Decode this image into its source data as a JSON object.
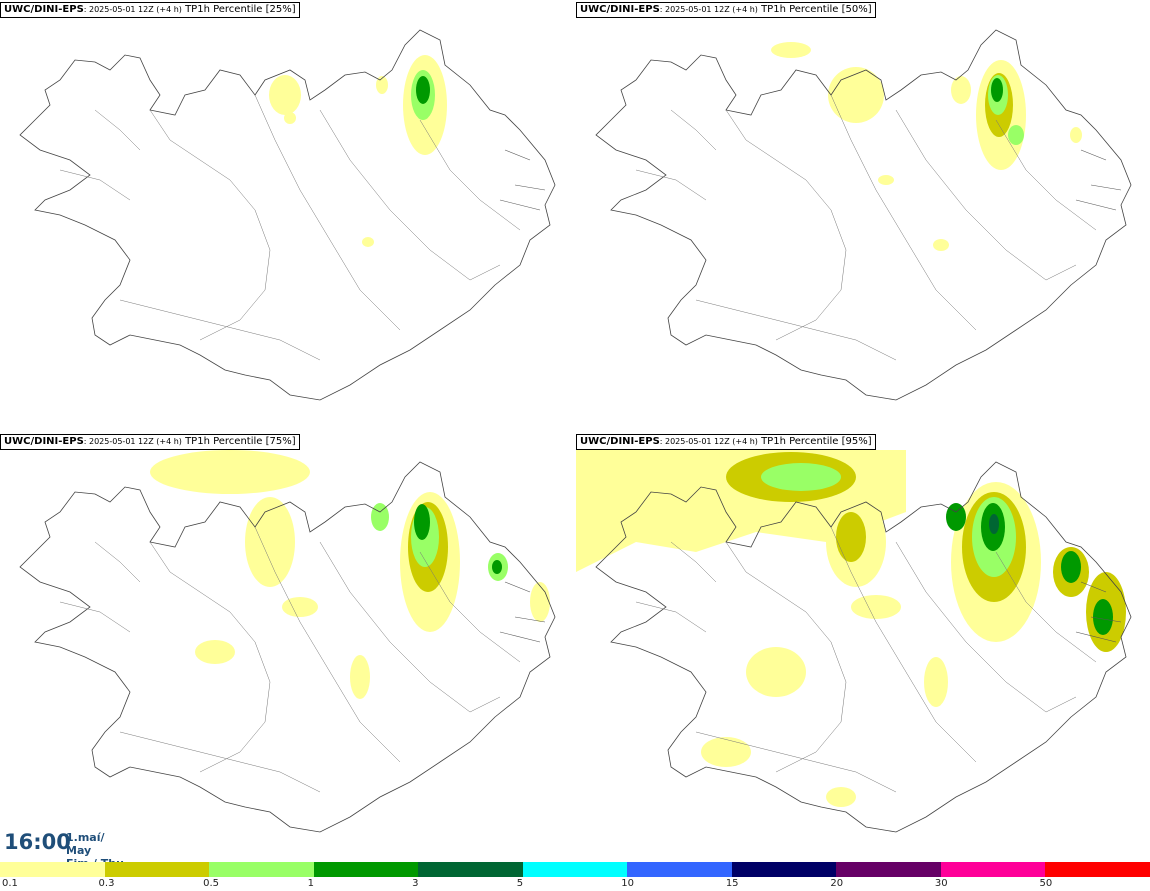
{
  "panels": [
    {
      "id": "p25",
      "model": "UWC/DINI-EPS",
      "run": ": 2025-05-01 12Z (+4 h)",
      "product": " TP1h Percentile [25%]"
    },
    {
      "id": "p50",
      "model": "UWC/DINI-EPS",
      "run": ": 2025-05-01 12Z (+4 h)",
      "product": " TP1h Percentile [50%]"
    },
    {
      "id": "p75",
      "model": "UWC/DINI-EPS",
      "run": ": 2025-05-01 12Z (+4 h)",
      "product": " TP1h Percentile [75%]"
    },
    {
      "id": "p95",
      "model": "UWC/DINI-EPS",
      "run": ": 2025-05-01 12Z (+4 h)",
      "product": " TP1h Percentile [95%]"
    }
  ],
  "time": {
    "clock": "16:00",
    "date_line1": "1.maí/ May",
    "date_line2": "Fim./ Thu"
  },
  "legend": {
    "colors": [
      "#ffff99",
      "#cccc00",
      "#99ff66",
      "#009900",
      "#006633",
      "#00ffff",
      "#3366ff",
      "#000066",
      "#660066",
      "#ff0099",
      "#ff0000"
    ],
    "labels": [
      "0.1",
      "0.3",
      "0.5",
      "1",
      "3",
      "5",
      "10",
      "15",
      "20",
      "30",
      "50"
    ]
  }
}
